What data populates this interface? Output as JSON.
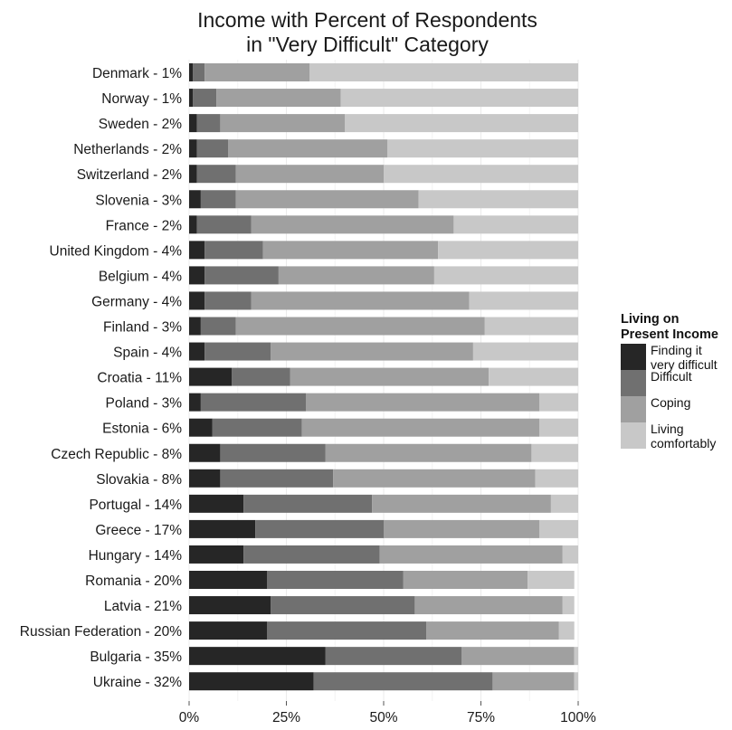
{
  "chart_data": {
    "type": "bar",
    "orientation": "horizontal",
    "stacked": true,
    "title_lines": [
      "Income with Percent of Respondents",
      "in \"Very Difficult\" Category"
    ],
    "categories": [
      "Denmark - 1%",
      "Norway - 1%",
      "Sweden - 2%",
      "Netherlands - 2%",
      "Switzerland - 2%",
      "Slovenia - 3%",
      "France - 2%",
      "United Kingdom - 4%",
      "Belgium - 4%",
      "Germany - 4%",
      "Finland - 3%",
      "Spain - 4%",
      "Croatia - 11%",
      "Poland - 3%",
      "Estonia - 6%",
      "Czech Republic - 8%",
      "Slovakia - 8%",
      "Portugal - 14%",
      "Greece - 17%",
      "Hungary - 14%",
      "Romania - 20%",
      "Latvia - 21%",
      "Russian Federation - 20%",
      "Bulgaria - 35%",
      "Ukraine - 32%"
    ],
    "series": [
      {
        "name": "Finding it very difficult",
        "color": "#262626",
        "values": [
          1,
          1,
          2,
          2,
          2,
          3,
          2,
          4,
          4,
          4,
          3,
          4,
          11,
          3,
          6,
          8,
          8,
          14,
          17,
          14,
          20,
          21,
          20,
          35,
          32
        ]
      },
      {
        "name": "Difficult",
        "color": "#707070",
        "values": [
          3,
          6,
          6,
          8,
          10,
          9,
          14,
          15,
          19,
          12,
          9,
          17,
          15,
          27,
          23,
          27,
          29,
          33,
          33,
          35,
          35,
          37,
          41,
          35,
          46
        ]
      },
      {
        "name": "Coping",
        "color": "#a0a0a0",
        "values": [
          27,
          32,
          32,
          41,
          38,
          47,
          52,
          45,
          40,
          56,
          64,
          52,
          51,
          60,
          61,
          53,
          52,
          46,
          40,
          47,
          32,
          38,
          34,
          29,
          21
        ]
      },
      {
        "name": "Living comfortably",
        "color": "#c8c8c8",
        "values": [
          69,
          61,
          60,
          49,
          50,
          41,
          32,
          36,
          37,
          28,
          24,
          27,
          23,
          10,
          10,
          12,
          11,
          7,
          10,
          4,
          12,
          3,
          4,
          1,
          1
        ]
      }
    ],
    "x_ticks": [
      "0%",
      "25%",
      "50%",
      "75%",
      "100%"
    ],
    "xlim": [
      0,
      100
    ],
    "legend": {
      "title_lines": [
        "Living on",
        "Present Income"
      ],
      "items": [
        {
          "lines": [
            "Finding it",
            "very difficult"
          ],
          "color": "#262626"
        },
        {
          "lines": [
            "Difficult"
          ],
          "color": "#707070"
        },
        {
          "lines": [
            "Coping"
          ],
          "color": "#a0a0a0"
        },
        {
          "lines": [
            "Living",
            "comfortably"
          ],
          "color": "#c8c8c8"
        }
      ],
      "position": "right"
    },
    "grid": true
  }
}
